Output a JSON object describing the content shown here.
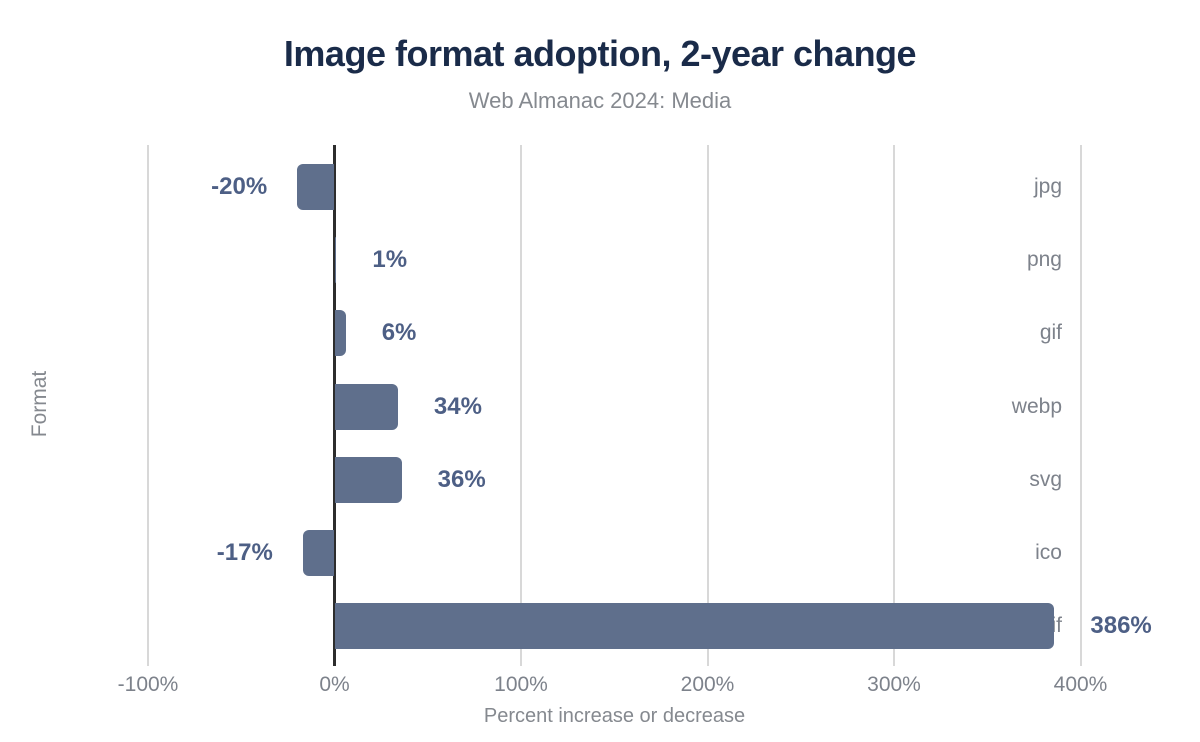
{
  "chart_data": {
    "type": "bar",
    "orientation": "horizontal",
    "title": "Image format adoption, 2-year change",
    "subtitle": "Web Almanac 2024: Media",
    "xlabel": "Percent increase or decrease",
    "ylabel": "Format",
    "categories": [
      "jpg",
      "png",
      "gif",
      "webp",
      "svg",
      "ico",
      "avif"
    ],
    "values": [
      -20,
      1,
      6,
      34,
      36,
      -17,
      386
    ],
    "value_labels": [
      "-20%",
      "1%",
      "6%",
      "34%",
      "36%",
      "-17%",
      "386%"
    ],
    "xlim": [
      -100,
      400
    ],
    "xticks": [
      {
        "value": -100,
        "label": "-100%"
      },
      {
        "value": 0,
        "label": "0%"
      },
      {
        "value": 100,
        "label": "100%"
      },
      {
        "value": 200,
        "label": "200%"
      },
      {
        "value": 300,
        "label": "300%"
      },
      {
        "value": 400,
        "label": "400%"
      }
    ],
    "grid": "vertical gridlines",
    "legend": "none"
  },
  "colors": {
    "bar": "#5F6F8C",
    "value_label": "#4D5F85",
    "title": "#1A2B49",
    "subtitle": "#85898F",
    "axis_text": "#7D828B",
    "gridline": "#D8D8D8",
    "zero_line": "#2D2D2D",
    "background": "#FFFFFF"
  }
}
